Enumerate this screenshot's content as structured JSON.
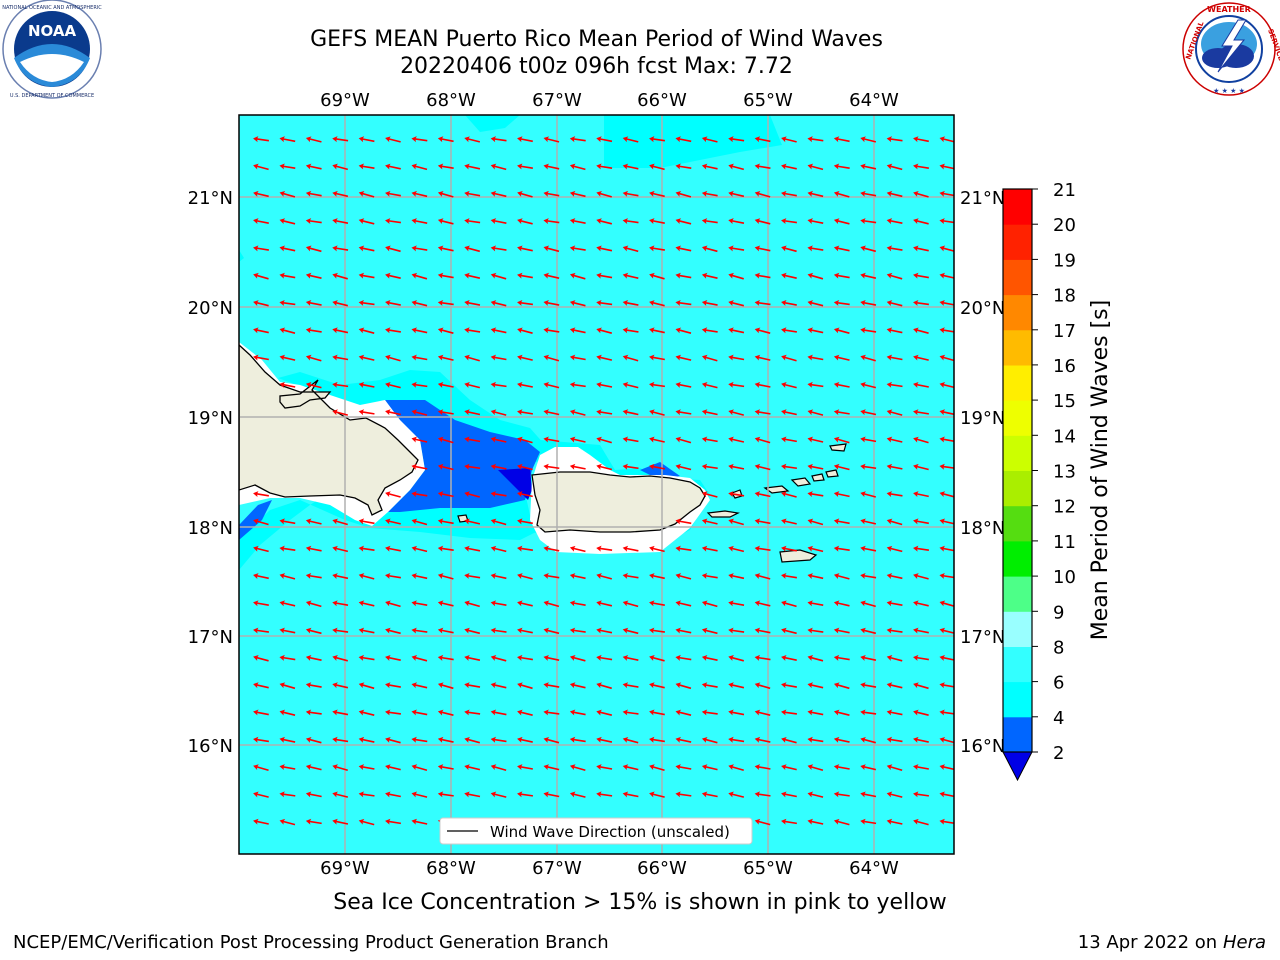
{
  "title": {
    "line1": "GEFS MEAN Puerto Rico Mean Period of Wind Waves",
    "line2": "20220406 t00z 096h fcst   Max: 7.72"
  },
  "logos": {
    "left": {
      "name": "noaa-logo",
      "text": "NOAA",
      "ring_text": "NATIONAL OCEANIC AND ATMOSPHERIC ADMINISTRATION · U.S. DEPARTMENT OF COMMERCE"
    },
    "right": {
      "name": "nws-logo",
      "ring_text": "NATIONAL WEATHER SERVICE"
    }
  },
  "map": {
    "lon_labels": [
      "69°W",
      "68°W",
      "67°W",
      "66°W",
      "65°W",
      "64°W"
    ],
    "lat_labels": [
      "21°N",
      "20°N",
      "19°N",
      "18°N",
      "17°N",
      "16°N"
    ],
    "ocean_color": "#33ffff",
    "land_color": "#eeeedd",
    "arrow_color": "#ff0000",
    "legend_label": "Wind Wave Direction (unscaled)"
  },
  "colorbar": {
    "label": "Mean Period of Wind Waves [s]",
    "ticks": [
      "2",
      "4",
      "6",
      "8",
      "9",
      "10",
      "11",
      "12",
      "13",
      "14",
      "15",
      "16",
      "17",
      "18",
      "19",
      "20",
      "21"
    ],
    "colors": [
      "#0000e6",
      "#0066ff",
      "#00ffff",
      "#33ffff",
      "#99ffff",
      "#4dff88",
      "#00ee00",
      "#55dd11",
      "#aaee00",
      "#ccff00",
      "#eeff00",
      "#ffee00",
      "#ffbb00",
      "#ff8800",
      "#ff5500",
      "#ff2200",
      "#ff0000"
    ]
  },
  "caption": "Sea Ice Concentration > 15% is shown in pink to yellow",
  "footer": {
    "left": "NCEP/EMC/Verification Post Processing Product Generation Branch",
    "right_prefix": "13 Apr 2022 on ",
    "right_host": "Hera"
  }
}
